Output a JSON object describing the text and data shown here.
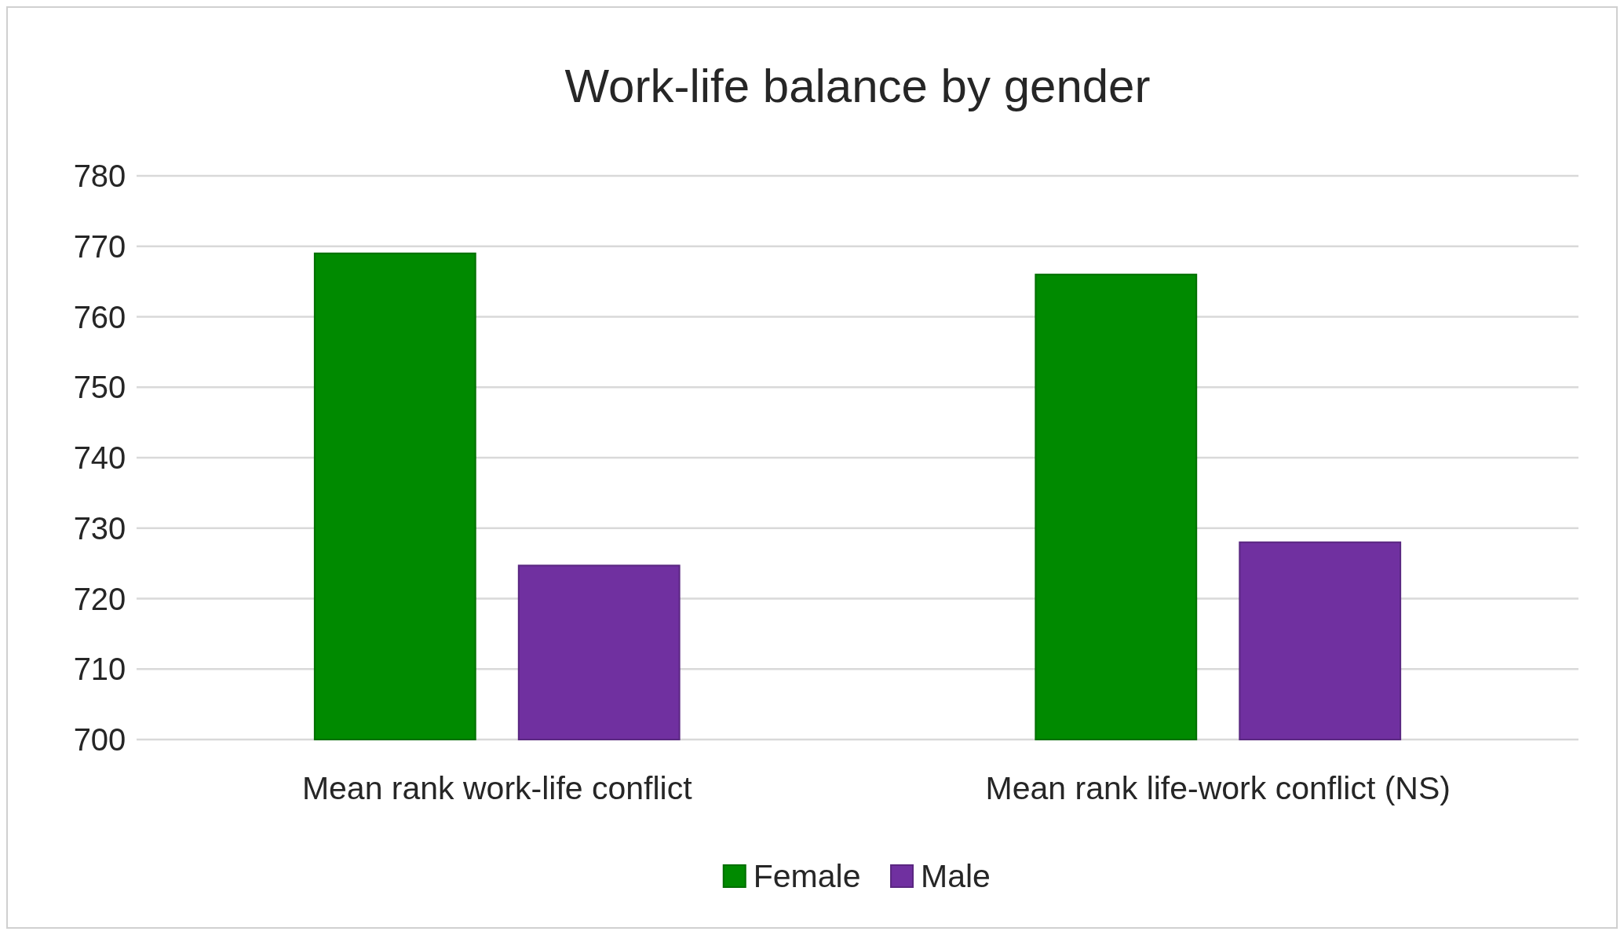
{
  "chart_data": {
    "type": "bar",
    "title": "Work-life balance by gender",
    "categories": [
      "Mean rank work-life conflict",
      "Mean rank life-work conflict (NS)"
    ],
    "series": [
      {
        "name": "Female",
        "color": "#008a00",
        "values": [
          769,
          766
        ]
      },
      {
        "name": "Male",
        "color": "#7030a0",
        "values": [
          724.7,
          728
        ]
      }
    ],
    "ylim": [
      700,
      780
    ],
    "yticks": [
      700,
      710,
      720,
      730,
      740,
      750,
      760,
      770,
      780
    ],
    "grid": "y",
    "legend": "bottom"
  }
}
